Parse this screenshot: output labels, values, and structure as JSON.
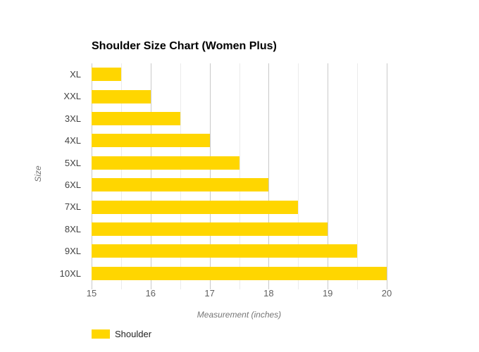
{
  "chart_data": {
    "type": "bar",
    "orientation": "horizontal",
    "title": "Shoulder Size Chart (Women Plus)",
    "categories": [
      "XL",
      "XXL",
      "3XL",
      "4XL",
      "5XL",
      "6XL",
      "7XL",
      "8XL",
      "9XL",
      "10XL"
    ],
    "series": [
      {
        "name": "Shoulder",
        "values": [
          15.5,
          16,
          16.5,
          17,
          17.5,
          18,
          18.5,
          19,
          19.5,
          20
        ]
      }
    ],
    "xlabel": "Measurement (inches)",
    "ylabel": "Size",
    "xlim": [
      15,
      20
    ],
    "x_major_ticks": [
      15,
      16,
      17,
      18,
      19,
      20
    ],
    "x_minor_step": 0.5,
    "grid": "on",
    "legend_position": "bottom-left",
    "colors": {
      "bar": "#FFD600",
      "grid_major": "#c9c9c9",
      "grid_minor": "#ebebeb",
      "tick_label": "#616161",
      "category_label": "#424242",
      "axis_title": "#757575",
      "title": "#000000"
    }
  },
  "legend": {
    "label": "Shoulder",
    "swatch_color": "#FFD600"
  }
}
